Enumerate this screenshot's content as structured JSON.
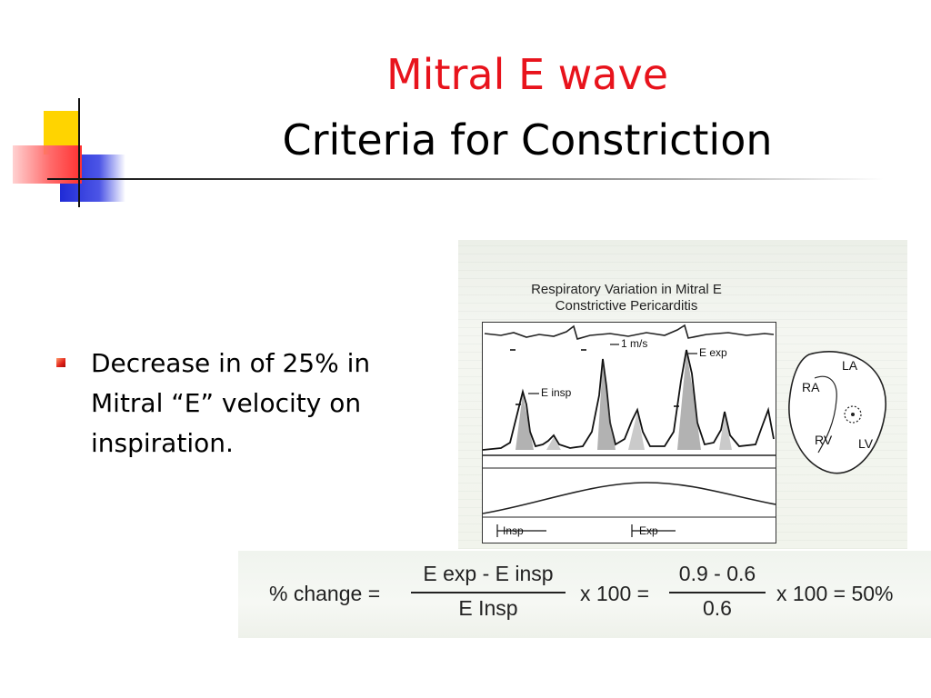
{
  "slide": {
    "title_line1": "Mitral E wave",
    "title_line2": "Criteria for Constriction",
    "title_line1_color": "#e8131c",
    "bullet": "Decrease in of 25% in Mitral “E” velocity on inspiration."
  },
  "figure": {
    "title_line1": "Respiratory Variation in Mitral E",
    "title_line2": "Constrictive Pericarditis",
    "scale_label": "1 m/s",
    "e_exp_label": "E exp",
    "e_insp_label": "E insp",
    "insp_label": "Insp",
    "exp_label": "Exp",
    "heart_labels": {
      "la": "LA",
      "ra": "RA",
      "rv": "RV",
      "lv": "LV"
    }
  },
  "formula": {
    "lhs": "% change =",
    "numerator1": "E exp - E insp",
    "denominator1": "E Insp",
    "times1": "x 100 =",
    "numerator2": "0.9 - 0.6",
    "denominator2": "0.6",
    "result": "x 100 = 50%"
  }
}
